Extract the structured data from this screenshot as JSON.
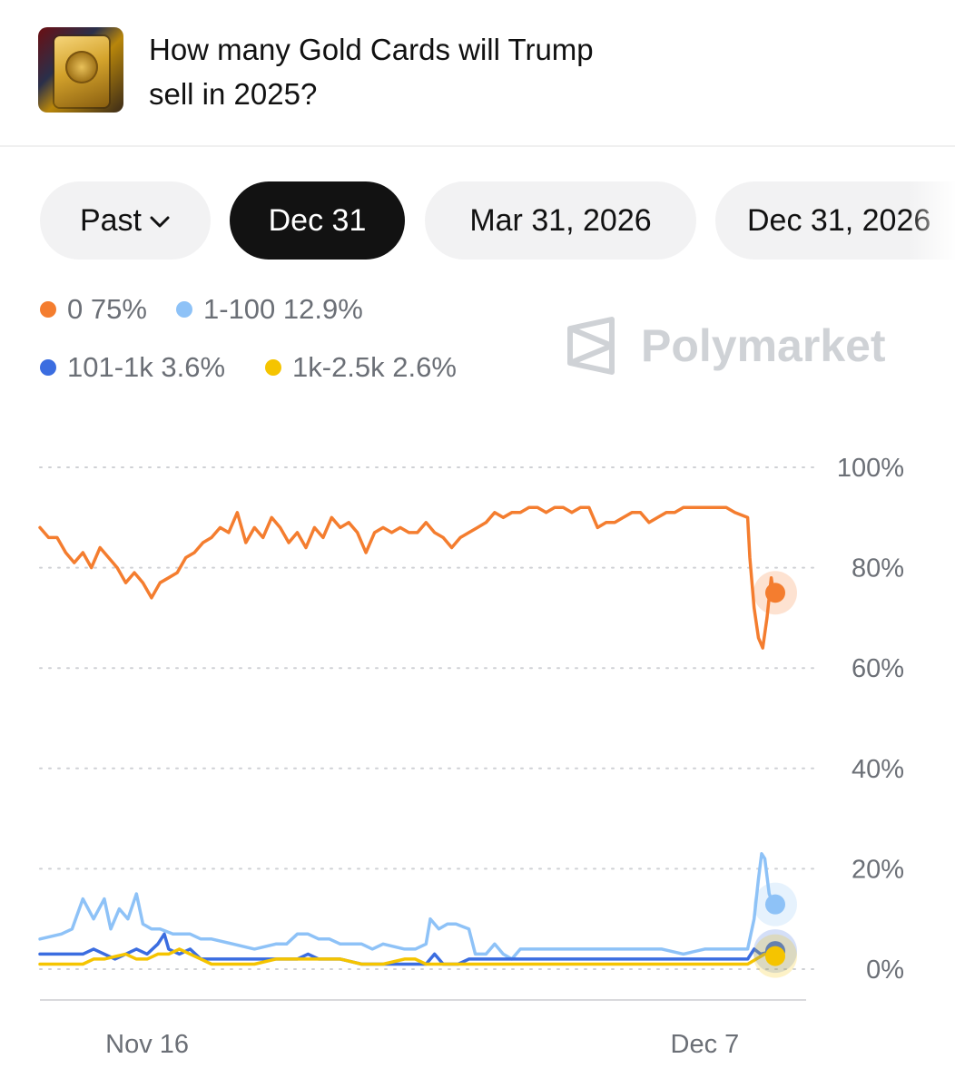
{
  "header": {
    "title": "How many Gold Cards will Trump sell in 2025?",
    "thumbnail_icon": "gold-card-thumbnail"
  },
  "tabs": [
    {
      "label": "Past",
      "has_dropdown": true,
      "active": false
    },
    {
      "label": "Dec 31",
      "active": true
    },
    {
      "label": "Mar 31, 2026",
      "active": false
    },
    {
      "label": "Dec 31, 2026",
      "active": false
    }
  ],
  "legend": [
    {
      "name": "0",
      "value": "75%",
      "color": "#f47d2f"
    },
    {
      "name": "1-100",
      "value": "12.9%",
      "color": "#8ec2f7"
    },
    {
      "name": "101-1k",
      "value": "3.6%",
      "color": "#3b6de0"
    },
    {
      "name": "1k-2.5k",
      "value": "2.6%",
      "color": "#f5c400"
    }
  ],
  "watermark": "Polymarket",
  "chart_data": {
    "type": "line",
    "ylim": [
      0,
      100
    ],
    "y_ticks": [
      "100%",
      "80%",
      "60%",
      "40%",
      "20%",
      "0%"
    ],
    "x_ticks": [
      "Nov 16",
      "Dec 7"
    ],
    "grid": true,
    "y_axis_position": "right",
    "x_range_days": [
      0,
      37
    ],
    "x_tick_days": [
      5,
      31
    ],
    "series": [
      {
        "name": "0",
        "color": "#f47d2f",
        "current": 75,
        "points": [
          [
            0,
            88
          ],
          [
            0.4,
            86
          ],
          [
            0.8,
            86
          ],
          [
            1.2,
            83
          ],
          [
            1.6,
            81
          ],
          [
            2.0,
            83
          ],
          [
            2.4,
            80
          ],
          [
            2.8,
            84
          ],
          [
            3.2,
            82
          ],
          [
            3.6,
            80
          ],
          [
            4.0,
            77
          ],
          [
            4.4,
            79
          ],
          [
            4.8,
            77
          ],
          [
            5.2,
            74
          ],
          [
            5.6,
            77
          ],
          [
            6.0,
            78
          ],
          [
            6.4,
            79
          ],
          [
            6.8,
            82
          ],
          [
            7.2,
            83
          ],
          [
            7.6,
            85
          ],
          [
            8.0,
            86
          ],
          [
            8.4,
            88
          ],
          [
            8.8,
            87
          ],
          [
            9.2,
            91
          ],
          [
            9.6,
            85
          ],
          [
            10.0,
            88
          ],
          [
            10.4,
            86
          ],
          [
            10.8,
            90
          ],
          [
            11.2,
            88
          ],
          [
            11.6,
            85
          ],
          [
            12.0,
            87
          ],
          [
            12.4,
            84
          ],
          [
            12.8,
            88
          ],
          [
            13.2,
            86
          ],
          [
            13.6,
            90
          ],
          [
            14.0,
            88
          ],
          [
            14.4,
            89
          ],
          [
            14.8,
            87
          ],
          [
            15.2,
            83
          ],
          [
            15.6,
            87
          ],
          [
            16.0,
            88
          ],
          [
            16.4,
            87
          ],
          [
            16.8,
            88
          ],
          [
            17.2,
            87
          ],
          [
            17.6,
            87
          ],
          [
            18.0,
            89
          ],
          [
            18.4,
            87
          ],
          [
            18.8,
            86
          ],
          [
            19.2,
            84
          ],
          [
            19.6,
            86
          ],
          [
            20.0,
            87
          ],
          [
            20.4,
            88
          ],
          [
            20.8,
            89
          ],
          [
            21.2,
            91
          ],
          [
            21.6,
            90
          ],
          [
            22.0,
            91
          ],
          [
            22.4,
            91
          ],
          [
            22.8,
            92
          ],
          [
            23.2,
            92
          ],
          [
            23.6,
            91
          ],
          [
            24.0,
            92
          ],
          [
            24.4,
            92
          ],
          [
            24.8,
            91
          ],
          [
            25.2,
            92
          ],
          [
            25.6,
            92
          ],
          [
            26.0,
            88
          ],
          [
            26.4,
            89
          ],
          [
            26.8,
            89
          ],
          [
            27.2,
            90
          ],
          [
            27.6,
            91
          ],
          [
            28.0,
            91
          ],
          [
            28.4,
            89
          ],
          [
            28.8,
            90
          ],
          [
            29.2,
            91
          ],
          [
            29.6,
            91
          ],
          [
            30.0,
            92
          ],
          [
            30.4,
            92
          ],
          [
            30.8,
            92
          ],
          [
            31.2,
            92
          ],
          [
            31.6,
            92
          ],
          [
            32.0,
            92
          ],
          [
            32.4,
            91
          ],
          [
            33.0,
            90
          ],
          [
            33.1,
            82
          ],
          [
            33.3,
            72
          ],
          [
            33.5,
            66
          ],
          [
            33.7,
            64
          ],
          [
            33.9,
            70
          ],
          [
            34.1,
            78
          ],
          [
            34.2,
            75
          ]
        ]
      },
      {
        "name": "1-100",
        "color": "#8ec2f7",
        "current": 12.9,
        "points": [
          [
            0,
            6
          ],
          [
            1,
            7
          ],
          [
            1.5,
            8
          ],
          [
            2,
            14
          ],
          [
            2.5,
            10
          ],
          [
            3,
            14
          ],
          [
            3.3,
            8
          ],
          [
            3.7,
            12
          ],
          [
            4.1,
            10
          ],
          [
            4.5,
            15
          ],
          [
            4.8,
            9
          ],
          [
            5.2,
            8
          ],
          [
            5.6,
            8
          ],
          [
            6.2,
            7
          ],
          [
            7,
            7
          ],
          [
            7.5,
            6
          ],
          [
            8,
            6
          ],
          [
            9,
            5
          ],
          [
            10,
            4
          ],
          [
            11,
            5
          ],
          [
            11.5,
            5
          ],
          [
            12,
            7
          ],
          [
            12.5,
            7
          ],
          [
            13,
            6
          ],
          [
            13.5,
            6
          ],
          [
            14,
            5
          ],
          [
            15,
            5
          ],
          [
            15.5,
            4
          ],
          [
            16,
            5
          ],
          [
            17,
            4
          ],
          [
            17.5,
            4
          ],
          [
            18,
            5
          ],
          [
            18.2,
            10
          ],
          [
            18.6,
            8
          ],
          [
            19,
            9
          ],
          [
            19.4,
            9
          ],
          [
            20,
            8
          ],
          [
            20.3,
            3
          ],
          [
            20.8,
            3
          ],
          [
            21.2,
            5
          ],
          [
            21.6,
            3
          ],
          [
            22,
            2
          ],
          [
            22.4,
            4
          ],
          [
            23,
            4
          ],
          [
            24,
            4
          ],
          [
            25,
            4
          ],
          [
            26,
            4
          ],
          [
            27,
            4
          ],
          [
            28,
            4
          ],
          [
            28.5,
            4
          ],
          [
            29,
            4
          ],
          [
            30,
            3
          ],
          [
            31,
            4
          ],
          [
            31.5,
            4
          ],
          [
            32,
            4
          ],
          [
            33,
            4
          ],
          [
            33.3,
            10
          ],
          [
            33.5,
            18
          ],
          [
            33.65,
            23
          ],
          [
            33.8,
            22
          ],
          [
            34.0,
            15
          ],
          [
            34.2,
            12.9
          ]
        ]
      },
      {
        "name": "101-1k",
        "color": "#3b6de0",
        "current": 3.6,
        "points": [
          [
            0,
            3
          ],
          [
            1,
            3
          ],
          [
            2,
            3
          ],
          [
            2.5,
            4
          ],
          [
            3,
            3
          ],
          [
            3.5,
            2
          ],
          [
            4,
            3
          ],
          [
            4.5,
            4
          ],
          [
            5,
            3
          ],
          [
            5.5,
            5
          ],
          [
            5.8,
            7
          ],
          [
            6,
            4
          ],
          [
            6.5,
            3
          ],
          [
            7,
            4
          ],
          [
            7.5,
            2
          ],
          [
            8,
            2
          ],
          [
            9,
            2
          ],
          [
            10,
            2
          ],
          [
            11,
            2
          ],
          [
            12,
            2
          ],
          [
            12.5,
            3
          ],
          [
            13,
            2
          ],
          [
            14,
            2
          ],
          [
            15,
            1
          ],
          [
            16,
            1
          ],
          [
            17,
            1
          ],
          [
            17.5,
            1
          ],
          [
            18,
            1
          ],
          [
            18.4,
            3
          ],
          [
            18.8,
            1
          ],
          [
            19.5,
            1
          ],
          [
            20,
            2
          ],
          [
            21,
            2
          ],
          [
            22,
            2
          ],
          [
            23,
            2
          ],
          [
            24,
            2
          ],
          [
            25,
            2
          ],
          [
            26,
            2
          ],
          [
            27,
            2
          ],
          [
            28,
            2
          ],
          [
            29,
            2
          ],
          [
            30,
            2
          ],
          [
            31,
            2
          ],
          [
            32,
            2
          ],
          [
            33,
            2
          ],
          [
            33.3,
            4
          ],
          [
            33.6,
            3
          ],
          [
            34.2,
            3.6
          ]
        ]
      },
      {
        "name": "1k-2.5k",
        "color": "#f5c400",
        "current": 2.6,
        "points": [
          [
            0,
            1
          ],
          [
            1,
            1
          ],
          [
            2,
            1
          ],
          [
            2.5,
            2
          ],
          [
            3,
            2
          ],
          [
            4,
            3
          ],
          [
            4.5,
            2
          ],
          [
            5,
            2
          ],
          [
            5.5,
            3
          ],
          [
            6,
            3
          ],
          [
            6.5,
            4
          ],
          [
            7,
            3
          ],
          [
            7.5,
            2
          ],
          [
            8,
            1
          ],
          [
            9,
            1
          ],
          [
            10,
            1
          ],
          [
            11,
            2
          ],
          [
            12,
            2
          ],
          [
            13,
            2
          ],
          [
            14,
            2
          ],
          [
            15,
            1
          ],
          [
            16,
            1
          ],
          [
            17,
            2
          ],
          [
            17.5,
            2
          ],
          [
            18,
            1
          ],
          [
            19,
            1
          ],
          [
            20,
            1
          ],
          [
            21,
            1
          ],
          [
            22,
            1
          ],
          [
            23,
            1
          ],
          [
            24,
            1
          ],
          [
            25,
            1
          ],
          [
            26,
            1
          ],
          [
            27,
            1
          ],
          [
            28,
            1
          ],
          [
            29,
            1
          ],
          [
            30,
            1
          ],
          [
            31,
            1
          ],
          [
            32,
            1
          ],
          [
            33,
            1
          ],
          [
            33.4,
            2
          ],
          [
            33.8,
            3
          ],
          [
            34.2,
            2.6
          ]
        ]
      }
    ]
  }
}
